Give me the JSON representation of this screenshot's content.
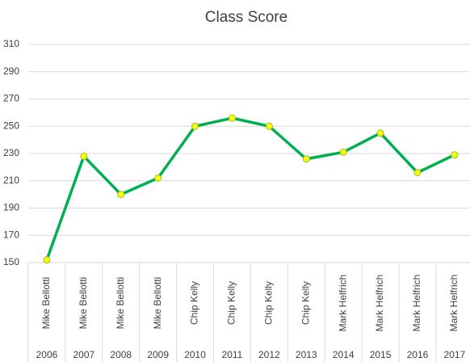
{
  "chart_data": {
    "type": "line",
    "title": "Class Score",
    "categories": [
      "2006",
      "2007",
      "2008",
      "2009",
      "2010",
      "2011",
      "2012",
      "2013",
      "2014",
      "2015",
      "2016",
      "2017"
    ],
    "category_groups": [
      "Mike Bellotti",
      "Mike Bellotti",
      "Mike Bellotti",
      "Mike Bellotti",
      "Chip Kelly",
      "Chip Kelly",
      "Chip Kelly",
      "Chip Kelly",
      "Mark Helfrich",
      "Mark Helfrich",
      "Mark Helfrich",
      "Mark Helfrich"
    ],
    "series": [
      {
        "name": "Class Score",
        "color": "#00b050",
        "marker_color": "#ffff00",
        "values": [
          152,
          228,
          200,
          212,
          250,
          256,
          250,
          226,
          231,
          245,
          216,
          229
        ]
      }
    ],
    "ylim": [
      150,
      310
    ],
    "yticks": [
      150,
      170,
      190,
      210,
      230,
      250,
      270,
      290,
      310
    ],
    "grid": true
  }
}
